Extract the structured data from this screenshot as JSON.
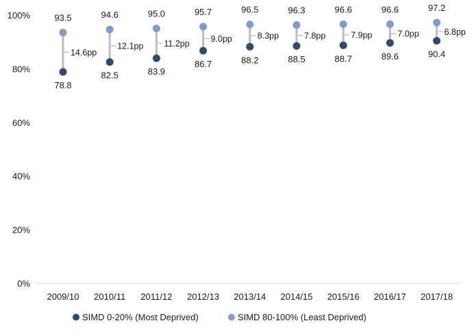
{
  "chart_data": {
    "type": "dot-range",
    "title": "",
    "xlabel": "",
    "ylabel": "",
    "categories": [
      "2009/10",
      "2010/11",
      "2011/12",
      "2012/13",
      "2013/14",
      "2014/15",
      "2015/16",
      "2016/17",
      "2017/18"
    ],
    "ylim": [
      0,
      100
    ],
    "yticks": [
      0,
      20,
      40,
      60,
      80,
      100
    ],
    "ytick_labels": [
      "0%",
      "20%",
      "40%",
      "60%",
      "80%",
      "100%"
    ],
    "series": [
      {
        "name": "SIMD 0-20% (Most Deprived)",
        "color": "#2e4a72",
        "values": [
          78.8,
          82.5,
          83.9,
          86.7,
          88.2,
          88.5,
          88.7,
          89.6,
          90.4
        ],
        "labels": [
          "78.8",
          "82.5",
          "83.9",
          "86.7",
          "88.2",
          "88.5",
          "88.7",
          "89.6",
          "90.4"
        ]
      },
      {
        "name": "SIMD 80-100% (Least Deprived)",
        "color": "#7f9ccc",
        "values": [
          93.5,
          94.6,
          95.0,
          95.7,
          96.5,
          96.3,
          96.6,
          96.6,
          97.2
        ],
        "labels": [
          "93.5",
          "94.6",
          "95.0",
          "95.7",
          "96.5",
          "96.3",
          "96.6",
          "96.6",
          "97.2"
        ]
      }
    ],
    "gaps": [
      "14.6pp",
      "12.1pp",
      "11.2pp",
      "9.0pp",
      "8.3pp",
      "7.8pp",
      "7.9pp",
      "7.0pp",
      "6.8pp"
    ],
    "connector_color": "#bdbdbd",
    "grid": false,
    "legend_position": "bottom"
  }
}
